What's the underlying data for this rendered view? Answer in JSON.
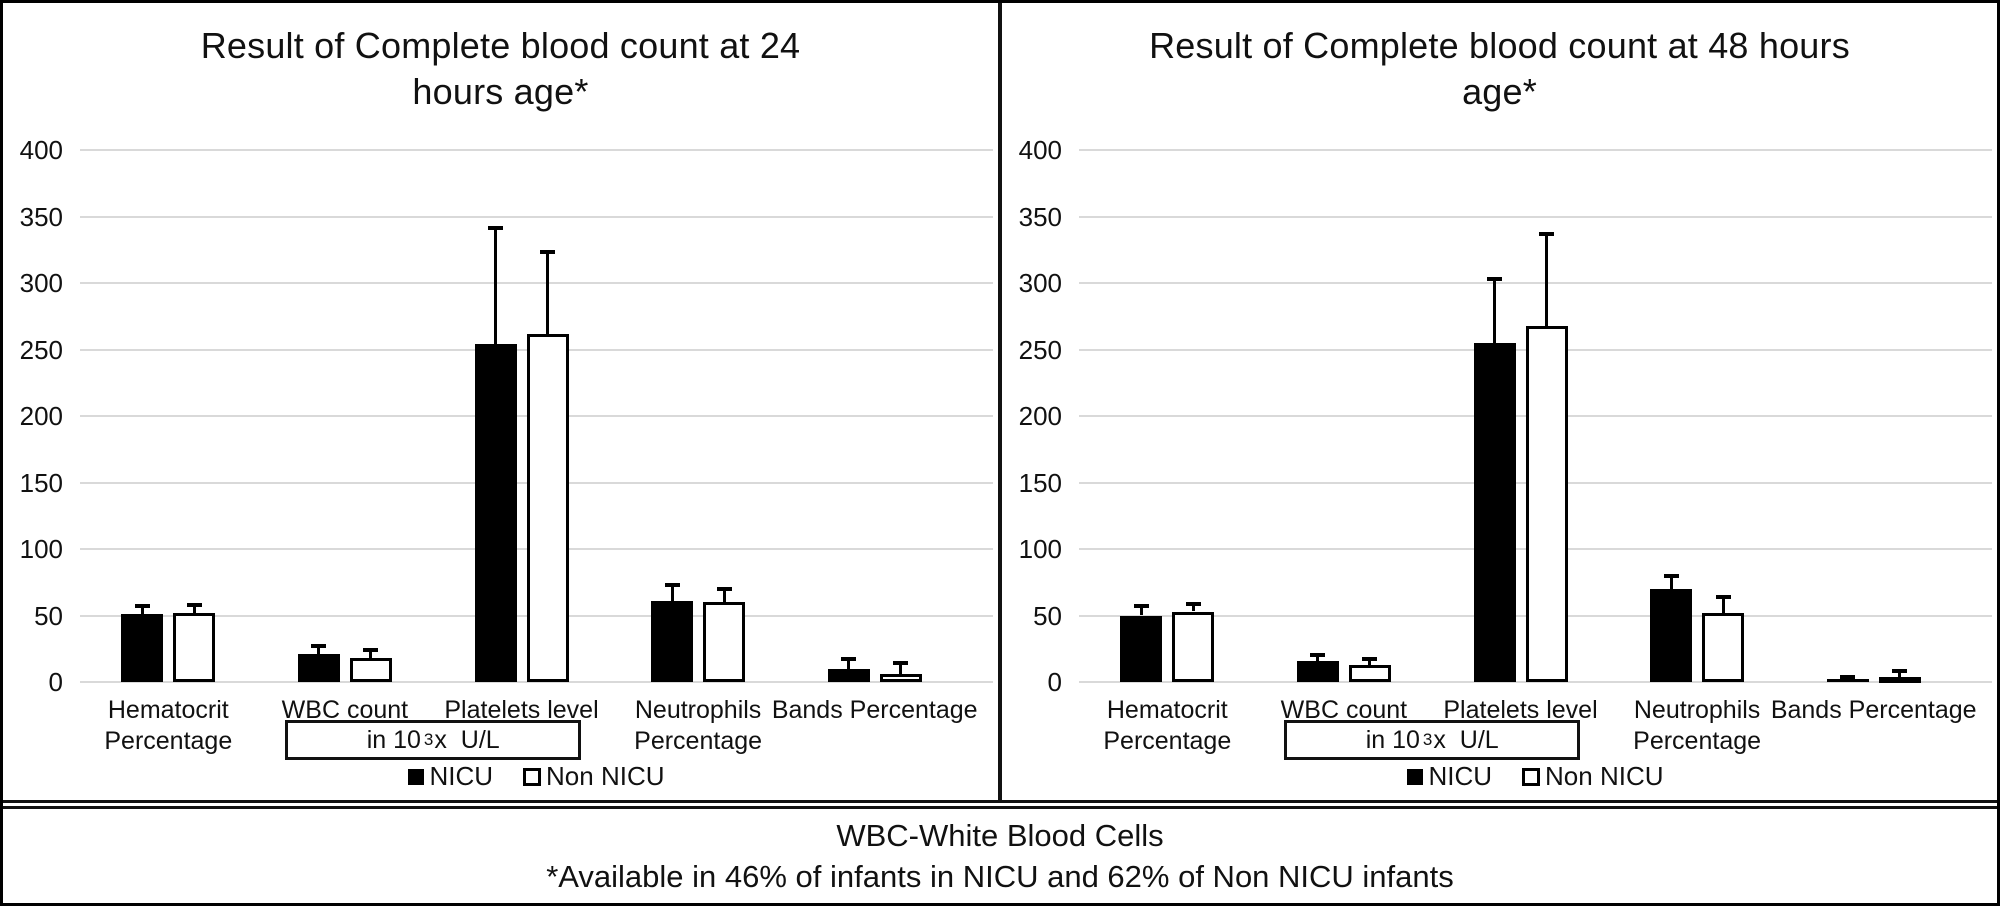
{
  "footer": {
    "line1": "WBC-White Blood Cells",
    "line2": "*Available in 46% of infants in NICU and 62% of Non NICU infants"
  },
  "legend": {
    "nicu_label": "NICU",
    "non_nicu_label": "Non NICU"
  },
  "unit_box": {
    "prefix": "in 10",
    "sup": "3",
    "suffix": "x  U/L"
  },
  "colors": {
    "nicu_fill": "#000000",
    "non_nicu_fill": "#ffffff",
    "bar_border": "#000000",
    "gridline": "#d9d9d9",
    "frame": "#111111"
  },
  "y_axis": {
    "min": 0,
    "max": 400,
    "step": 50,
    "ticks": [
      "400",
      "350",
      "300",
      "250",
      "200",
      "150",
      "100",
      "50",
      "0"
    ]
  },
  "chart_data": [
    {
      "type": "bar",
      "title": "Result of Complete blood count at 24 hours age*",
      "title_lines": [
        "Result of Complete blood count at 24",
        "hours age*"
      ],
      "categories": [
        "Hematocrit Percentage",
        "WBC count",
        "Platelets level",
        "Neutrophils Percentage",
        "Bands Percentage"
      ],
      "category_label_lines": [
        [
          "Hematocrit",
          "Percentage"
        ],
        [
          "WBC count"
        ],
        [
          "Platelets level"
        ],
        [
          "Neutrophils",
          "Percentage"
        ],
        [
          "Bands Percentage"
        ]
      ],
      "ylim": [
        0,
        400
      ],
      "grid": true,
      "legend_position": "bottom",
      "series": [
        {
          "name": "NICU",
          "values": [
            51,
            21,
            254,
            61,
            10
          ],
          "error_up": [
            6,
            6,
            87,
            12,
            7
          ]
        },
        {
          "name": "Non NICU",
          "values": [
            52,
            18,
            262,
            60,
            6
          ],
          "error_up": [
            6,
            6,
            61,
            10,
            8
          ]
        }
      ]
    },
    {
      "type": "bar",
      "title": "Result of Complete blood count at 48 hours age*",
      "title_lines": [
        "Result of Complete blood count at 48 hours",
        "age*"
      ],
      "categories": [
        "Hematocrit Percentage",
        "WBC count",
        "Platelets level",
        "Neutrophils Percentage",
        "Bands Percentage"
      ],
      "category_label_lines": [
        [
          "Hematocrit",
          "Percentage"
        ],
        [
          "WBC count"
        ],
        [
          "Platelets level"
        ],
        [
          "Neutrophils",
          "Percentage"
        ],
        [
          "Bands Percentage"
        ]
      ],
      "ylim": [
        0,
        400
      ],
      "grid": true,
      "legend_position": "bottom",
      "series": [
        {
          "name": "NICU",
          "values": [
            50,
            16,
            255,
            70,
            2
          ],
          "error_up": [
            7,
            4,
            48,
            10,
            2
          ]
        },
        {
          "name": "Non NICU",
          "values": [
            53,
            13,
            268,
            52,
            4
          ],
          "error_up": [
            6,
            4,
            69,
            12,
            4
          ]
        }
      ]
    }
  ]
}
